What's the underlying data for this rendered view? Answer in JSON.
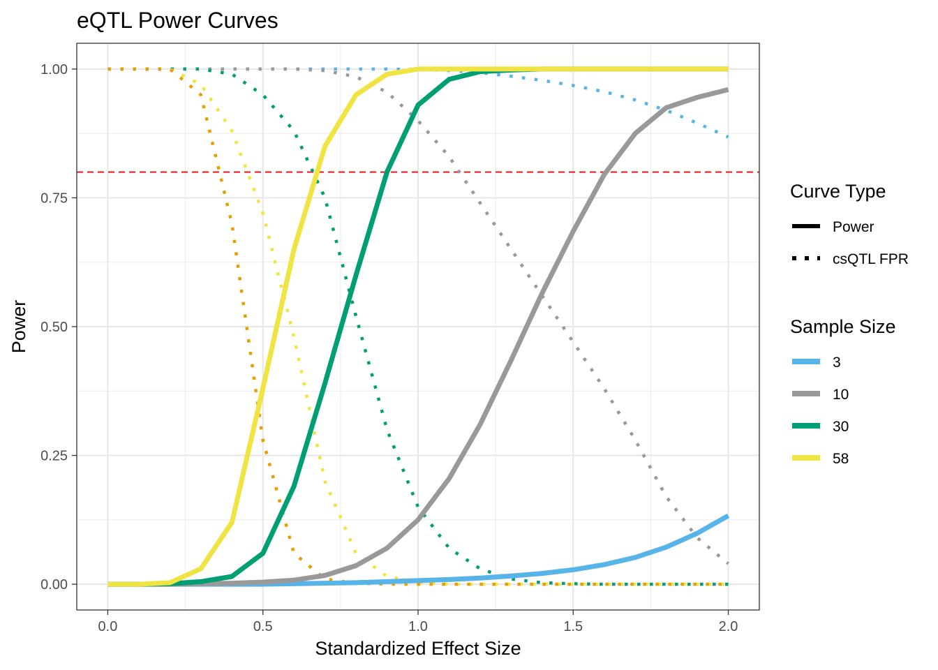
{
  "chart_data": {
    "type": "line",
    "title": "eQTL Power Curves",
    "xlabel": "Standardized Effect Size",
    "ylabel": "Power",
    "xlim": [
      -0.1,
      2.1
    ],
    "ylim": [
      -0.05,
      1.05
    ],
    "x_ticks": [
      0.0,
      0.5,
      1.0,
      1.5,
      2.0
    ],
    "x_tick_labels": [
      "0.0",
      "0.5",
      "1.0",
      "1.5",
      "2.0"
    ],
    "y_ticks": [
      0.0,
      0.25,
      0.5,
      0.75,
      1.0
    ],
    "y_tick_labels": [
      "0.00",
      "0.25",
      "0.50",
      "0.75",
      "1.00"
    ],
    "grid": true,
    "reference_line": {
      "y": 0.8,
      "color": "#e8211c",
      "style": "dashed"
    },
    "legend_placement": "right",
    "legend": {
      "curve_type": {
        "title": "Curve Type",
        "items": [
          {
            "label": "Power",
            "style": "solid"
          },
          {
            "label": "csQTL FPR",
            "style": "dotted"
          }
        ]
      },
      "sample_size": {
        "title": "Sample Size",
        "items": [
          {
            "label": "3",
            "color": "#56b4e9"
          },
          {
            "label": "10",
            "color": "#999999"
          },
          {
            "label": "30",
            "color": "#009e73"
          },
          {
            "label": "58",
            "color": "#f0e442"
          }
        ]
      }
    },
    "x": [
      0.0,
      0.1,
      0.2,
      0.3,
      0.4,
      0.5,
      0.6,
      0.7,
      0.8,
      0.9,
      1.0,
      1.1,
      1.2,
      1.3,
      1.4,
      1.5,
      1.6,
      1.7,
      1.8,
      1.9,
      2.0
    ],
    "series": [
      {
        "name": "3",
        "type": "Power",
        "color": "#56b4e9",
        "values": [
          0.0,
          0.0,
          0.0,
          0.0,
          0.0,
          0.0,
          0.001,
          0.002,
          0.003,
          0.005,
          0.007,
          0.009,
          0.012,
          0.016,
          0.021,
          0.028,
          0.038,
          0.052,
          0.072,
          0.099,
          0.133
        ]
      },
      {
        "name": "10",
        "type": "Power",
        "color": "#999999",
        "values": [
          0.0,
          0.0,
          0.0,
          0.001,
          0.002,
          0.004,
          0.008,
          0.017,
          0.036,
          0.07,
          0.125,
          0.205,
          0.31,
          0.435,
          0.565,
          0.685,
          0.795,
          0.875,
          0.925,
          0.945,
          0.96
        ]
      },
      {
        "name": "30",
        "type": "Power",
        "color": "#009e73",
        "values": [
          0.0,
          0.0,
          0.001,
          0.005,
          0.015,
          0.06,
          0.19,
          0.39,
          0.6,
          0.8,
          0.93,
          0.98,
          0.995,
          0.998,
          1.0,
          1.0,
          1.0,
          1.0,
          1.0,
          1.0,
          1.0
        ]
      },
      {
        "name": "58",
        "type": "Power",
        "color": "#f0e442",
        "values": [
          0.0,
          0.0,
          0.003,
          0.03,
          0.12,
          0.38,
          0.65,
          0.85,
          0.95,
          0.99,
          1.0,
          1.0,
          1.0,
          1.0,
          1.0,
          1.0,
          1.0,
          1.0,
          1.0,
          1.0,
          1.0
        ]
      },
      {
        "name": "3",
        "type": "csQTL FPR",
        "color": "#56b4e9",
        "values": [
          1.0,
          1.0,
          1.0,
          1.0,
          1.0,
          1.0,
          1.0,
          1.0,
          1.0,
          1.0,
          0.999,
          0.997,
          0.993,
          0.986,
          0.978,
          0.968,
          0.956,
          0.94,
          0.92,
          0.895,
          0.868
        ]
      },
      {
        "name": "10",
        "type": "csQTL FPR",
        "color": "#999999",
        "values": [
          1.0,
          1.0,
          1.0,
          1.0,
          1.0,
          1.0,
          1.0,
          0.997,
          0.985,
          0.955,
          0.9,
          0.83,
          0.74,
          0.65,
          0.56,
          0.47,
          0.38,
          0.28,
          0.17,
          0.09,
          0.04
        ]
      },
      {
        "name": "30",
        "type": "csQTL FPR",
        "color": "#009e73",
        "values": [
          1.0,
          1.0,
          1.0,
          1.0,
          0.99,
          0.95,
          0.88,
          0.75,
          0.52,
          0.3,
          0.15,
          0.07,
          0.03,
          0.01,
          0.003,
          0.001,
          0.0,
          0.0,
          0.0,
          0.0,
          0.0
        ]
      },
      {
        "name": "58",
        "type": "csQTL FPR",
        "color": "#f0e442",
        "values": [
          1.0,
          1.0,
          1.0,
          0.97,
          0.88,
          0.72,
          0.48,
          0.2,
          0.06,
          0.015,
          0.003,
          0.0,
          0.0,
          0.0,
          0.0,
          0.0,
          0.0,
          0.0,
          0.0,
          0.0,
          0.0
        ]
      },
      {
        "name": "orange",
        "type": "csQTL FPR",
        "color": "#e69f00",
        "values": [
          1.0,
          1.0,
          1.0,
          0.95,
          0.7,
          0.28,
          0.06,
          0.01,
          0.002,
          0.0,
          0.0,
          0.0,
          0.0,
          0.0,
          0.0,
          0.0,
          0.0,
          0.0,
          0.0,
          0.0,
          0.0
        ]
      }
    ]
  }
}
